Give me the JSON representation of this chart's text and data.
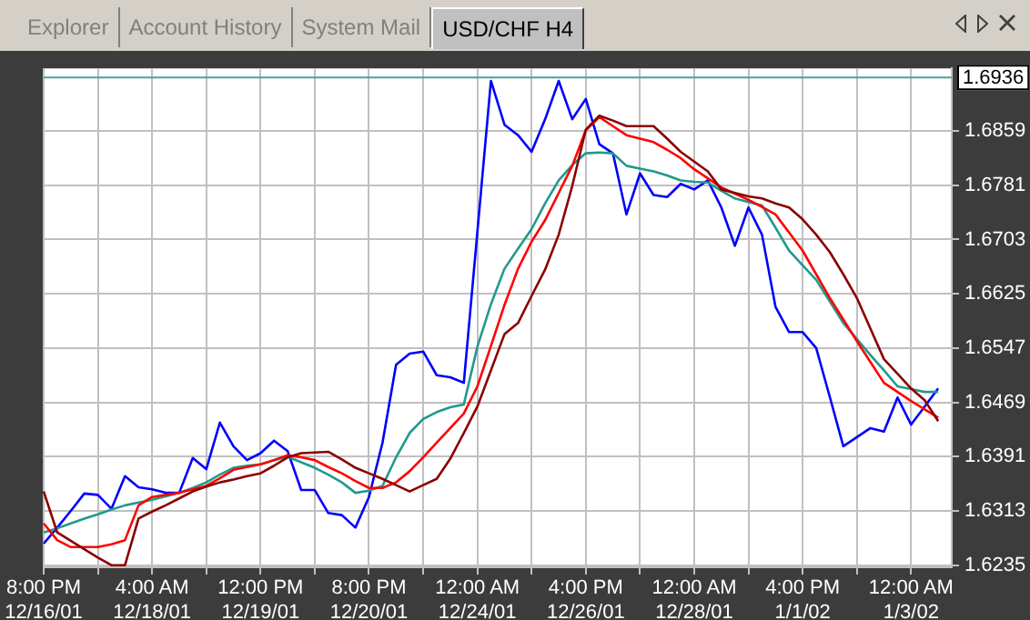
{
  "chart_data": {
    "type": "line",
    "title": "USD/CHF H4",
    "annotations": [
      "Explorer",
      "Account History",
      "System Mail"
    ],
    "categories": [
      "8:00 PM\n12/16/01",
      null,
      null,
      null,
      null,
      null,
      null,
      null,
      "4:00 AM\n12/18/01",
      null,
      null,
      null,
      null,
      null,
      null,
      null,
      "12:00 PM\n12/19/01",
      null,
      null,
      null,
      null,
      null,
      null,
      null,
      "8:00 PM\n12/20/01",
      null,
      null,
      null,
      null,
      null,
      null,
      null,
      "12:00 AM\n12/24/01",
      null,
      null,
      null,
      null,
      null,
      null,
      null,
      "4:00 PM\n12/26/01",
      null,
      null,
      null,
      null,
      null,
      null,
      null,
      "12:00 AM\n12/28/01",
      null,
      null,
      null,
      null,
      null,
      null,
      null,
      "4:00 PM\n1/1/02",
      null,
      null,
      null,
      null,
      null,
      null,
      null,
      "12:00 AM\n1/3/02",
      null,
      null,
      null
    ],
    "series": [
      {
        "color": "#8b0000",
        "values": [
          1.6341,
          1.6282,
          1.627,
          1.6258,
          1.6246,
          1.6235,
          1.6235,
          1.6302,
          1.6312,
          1.6321,
          1.6331,
          1.6341,
          1.6348,
          1.6354,
          1.6358,
          1.6363,
          1.6367,
          1.6378,
          1.639,
          1.6396,
          1.6397,
          1.6398,
          1.6387,
          1.6375,
          1.6367,
          1.6359,
          1.635,
          1.6341,
          1.635,
          1.6359,
          1.6388,
          1.6425,
          1.6463,
          1.6515,
          1.6567,
          1.6583,
          1.6622,
          1.666,
          1.671,
          1.678,
          1.6861,
          1.6881,
          1.6874,
          1.6866,
          1.6866,
          1.6866,
          1.6848,
          1.6829,
          1.6815,
          1.6801,
          1.6775,
          1.677,
          1.6765,
          1.6762,
          1.6755,
          1.6749,
          1.6732,
          1.671,
          1.6685,
          1.6653,
          1.6619,
          1.6575,
          1.6531,
          1.651,
          1.6489,
          1.6472,
          1.6442,
          null
        ]
      },
      {
        "color": "#ff0000",
        "values": [
          1.6295,
          1.6271,
          1.6261,
          1.6261,
          1.6261,
          1.6265,
          1.6271,
          1.6321,
          1.6333,
          1.6336,
          1.6339,
          1.6344,
          1.6349,
          1.636,
          1.6372,
          1.6376,
          1.638,
          1.6386,
          1.6393,
          1.639,
          1.6386,
          1.6376,
          1.6367,
          1.6356,
          1.6346,
          1.6346,
          1.6354,
          1.637,
          1.639,
          1.6411,
          1.6432,
          1.6453,
          1.6492,
          1.655,
          1.6609,
          1.6661,
          1.67,
          1.6731,
          1.677,
          1.6809,
          1.686,
          1.6879,
          1.6866,
          1.6853,
          1.6848,
          1.6843,
          1.6832,
          1.682,
          1.6804,
          1.6791,
          1.6778,
          1.6769,
          1.676,
          1.675,
          1.6739,
          1.6713,
          1.6687,
          1.6653,
          1.6619,
          1.6588,
          1.6557,
          1.6527,
          1.6497,
          1.6484,
          1.6471,
          1.6459,
          1.6447,
          null
        ]
      },
      {
        "color": "#22998c",
        "values": [
          1.6282,
          1.6288,
          1.6295,
          1.6302,
          1.6308,
          1.6315,
          1.6321,
          1.6325,
          1.6329,
          1.6334,
          1.6339,
          1.6346,
          1.6354,
          1.6365,
          1.6375,
          1.6378,
          1.638,
          1.6386,
          1.6391,
          1.6383,
          1.6375,
          1.6365,
          1.6354,
          1.6339,
          1.6342,
          1.6349,
          1.639,
          1.6425,
          1.6445,
          1.6455,
          1.6462,
          1.6466,
          1.6549,
          1.661,
          1.6661,
          1.669,
          1.6718,
          1.6755,
          1.6788,
          1.681,
          1.6827,
          1.6828,
          1.6827,
          1.6809,
          1.6805,
          1.6801,
          1.6795,
          1.6788,
          1.6786,
          1.6785,
          1.6773,
          1.6762,
          1.6757,
          1.6752,
          1.672,
          1.6687,
          1.6666,
          1.6645,
          1.6614,
          1.6583,
          1.656,
          1.6537,
          1.6515,
          1.6492,
          1.6488,
          1.6484,
          1.6484,
          null
        ]
      },
      {
        "color": "#0000ff",
        "values": [
          1.6266,
          1.6289,
          1.6313,
          1.6338,
          1.6336,
          1.6316,
          1.6363,
          1.6347,
          1.6344,
          1.6339,
          1.6339,
          1.6389,
          1.6373,
          1.644,
          1.6406,
          1.6386,
          1.6396,
          1.6414,
          1.6399,
          1.6343,
          1.6343,
          1.631,
          1.6307,
          1.6289,
          1.6333,
          1.6411,
          1.6523,
          1.6539,
          1.6542,
          1.6508,
          1.6505,
          1.6497,
          1.6714,
          1.6931,
          1.6868,
          1.6853,
          1.6829,
          1.6876,
          1.6931,
          1.6876,
          1.6905,
          1.684,
          1.6827,
          1.6739,
          1.6798,
          1.6767,
          1.6764,
          1.6783,
          1.6775,
          1.6788,
          1.6749,
          1.6694,
          1.6749,
          1.671,
          1.6606,
          1.657,
          1.657,
          1.6547,
          1.6477,
          1.6406,
          1.6419,
          1.6432,
          1.6427,
          1.6476,
          1.6437,
          1.6463,
          1.6489,
          null
        ]
      }
    ],
    "ylim": [
      1.6232,
      1.6949
    ],
    "yticks": [
      1.6235,
      1.6313,
      1.6391,
      1.6469,
      1.6547,
      1.6625,
      1.6703,
      1.6781,
      1.6859
    ],
    "ref_lines": [
      {
        "axis": "y",
        "value": 1.6936,
        "label": "1.6936",
        "color": "#4ea0a0"
      }
    ],
    "grid": true,
    "legend": false,
    "marker": "none",
    "line_style": "solid"
  }
}
